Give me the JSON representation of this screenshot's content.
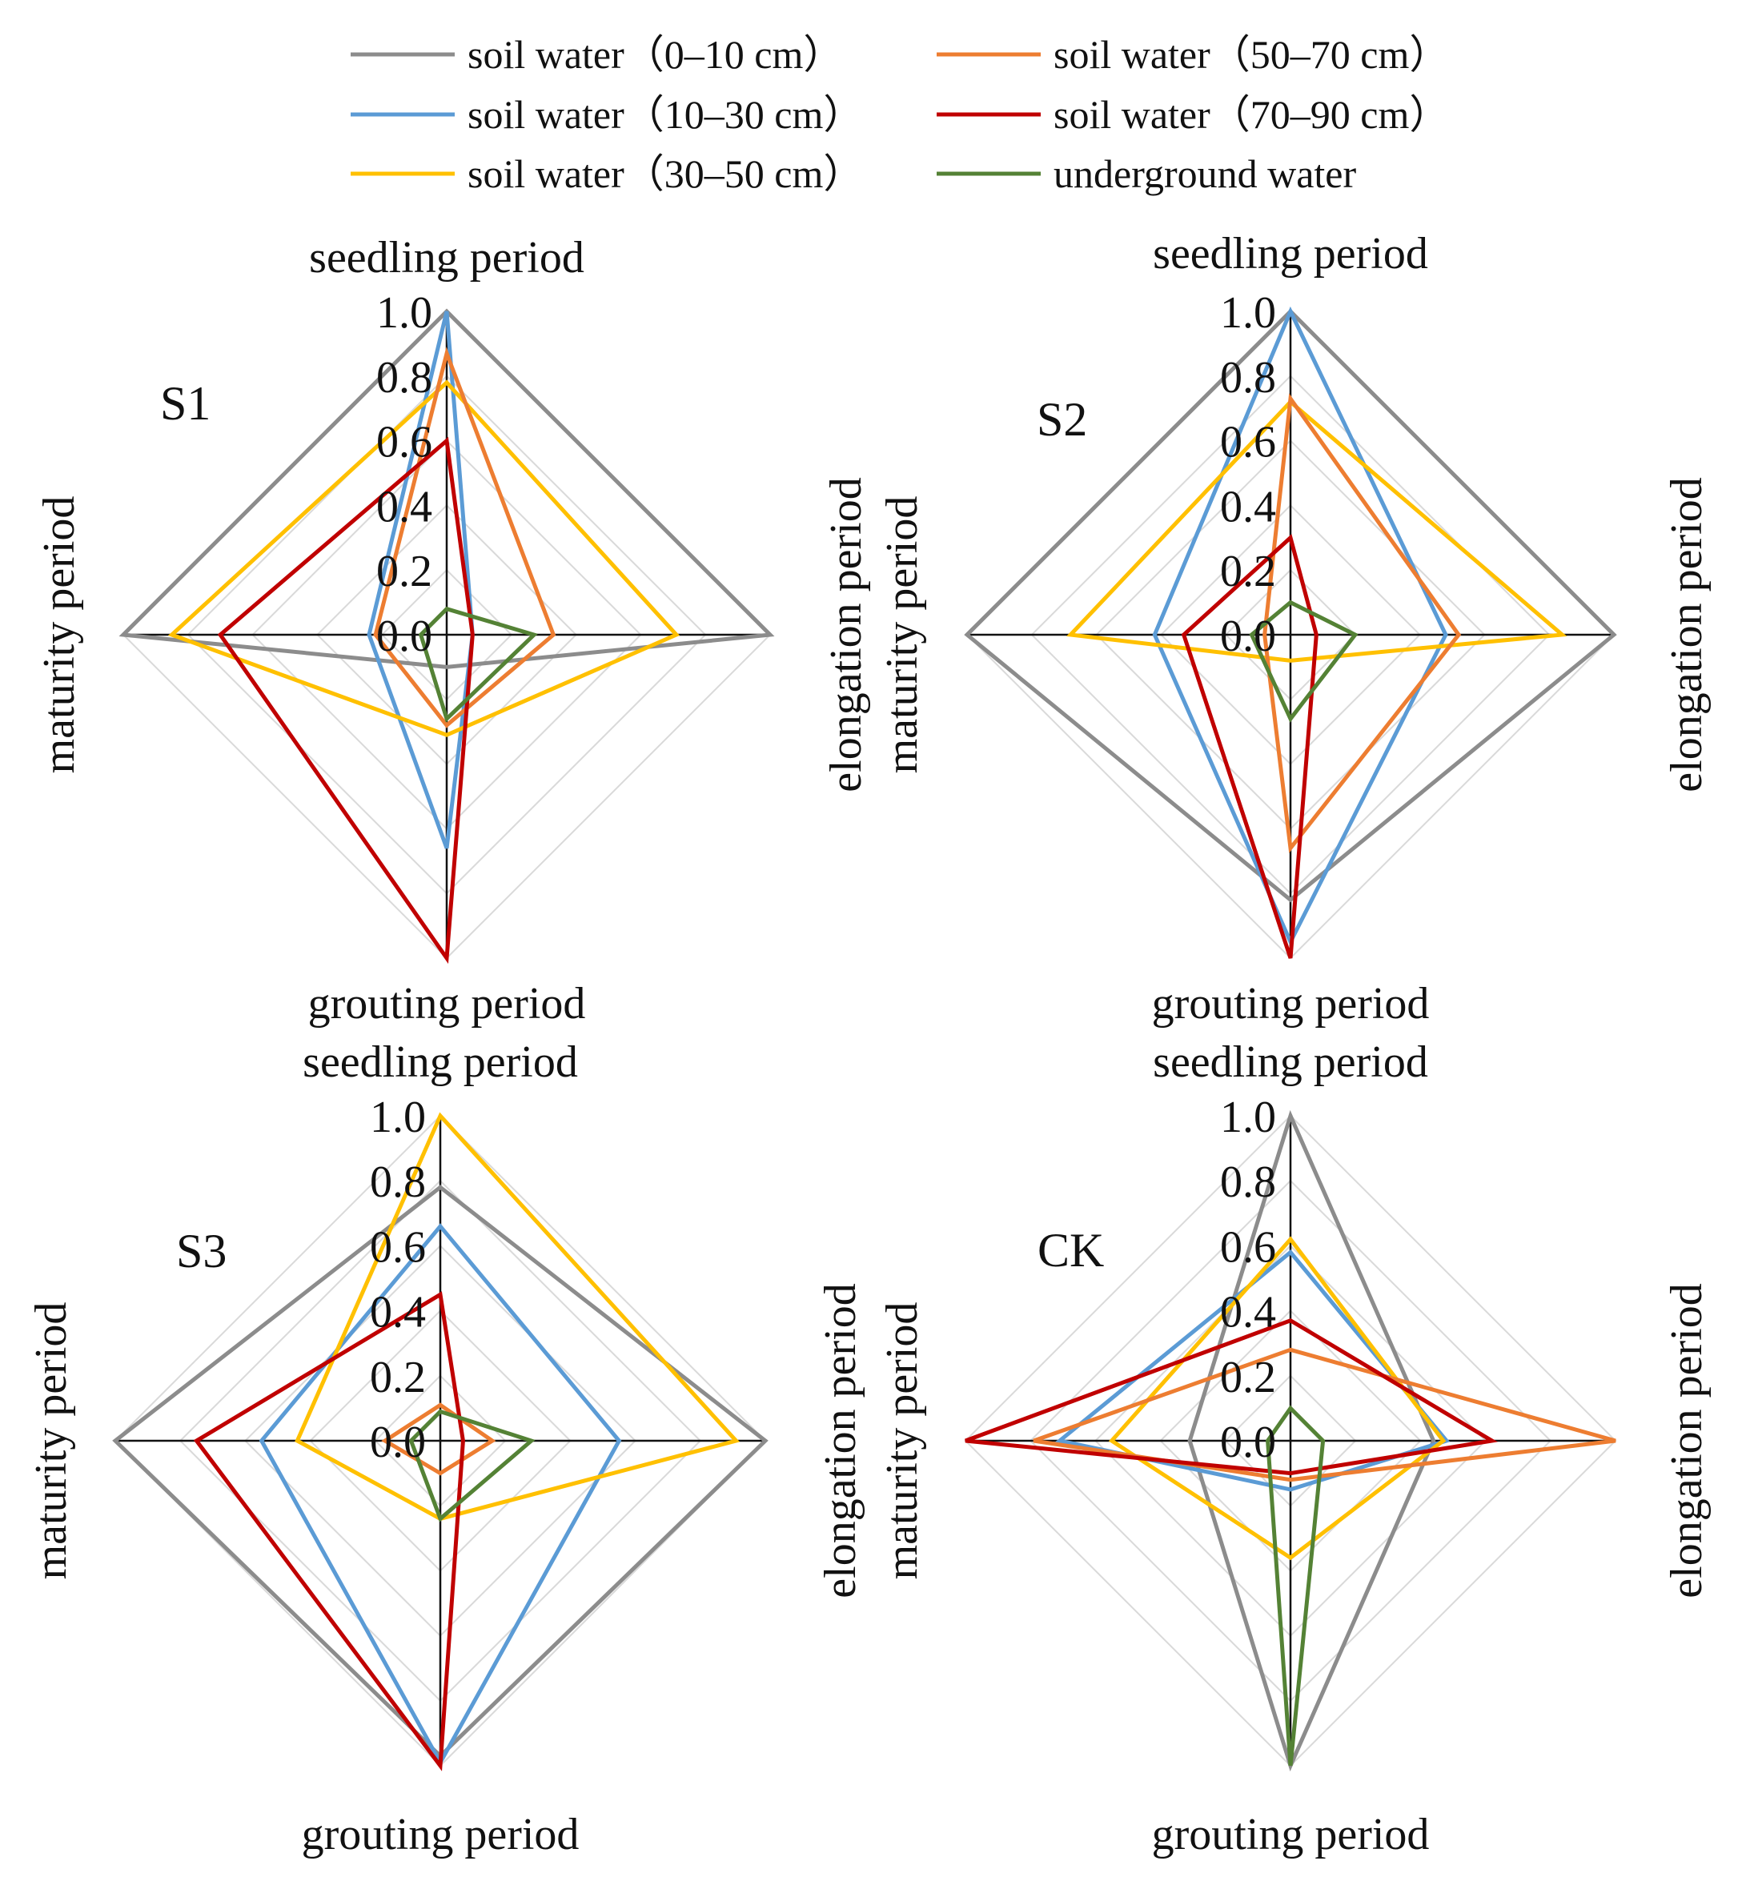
{
  "legend": {
    "items": [
      {
        "key": "sw0_10",
        "label": "soil water（0–10 cm）",
        "color": "#8c8c8c"
      },
      {
        "key": "sw10_30",
        "label": "soil water（10–30 cm）",
        "color": "#5b9bd5"
      },
      {
        "key": "sw30_50",
        "label": "soil water（30–50 cm）",
        "color": "#ffc000"
      },
      {
        "key": "sw50_70",
        "label": "soil water（50–70 cm）",
        "color": "#ed7d31"
      },
      {
        "key": "sw70_90",
        "label": "soil water（70–90 cm）",
        "color": "#c00000"
      },
      {
        "key": "ugw",
        "label": "underground water",
        "color": "#548235"
      }
    ]
  },
  "chart_data": [
    {
      "type": "radar",
      "panel": "S1",
      "axes": [
        "seedling period",
        "elongation period",
        "grouting period",
        "maturity period"
      ],
      "ticks": [
        "0.0",
        "0.2",
        "0.4",
        "0.6",
        "0.8",
        "1.0"
      ],
      "range": [
        0,
        1
      ],
      "series": [
        {
          "key": "sw0_10",
          "values": [
            1.0,
            1.0,
            0.1,
            1.0
          ]
        },
        {
          "key": "sw10_30",
          "values": [
            1.0,
            0.08,
            0.66,
            0.24
          ]
        },
        {
          "key": "sw30_50",
          "values": [
            0.78,
            0.71,
            0.31,
            0.85
          ]
        },
        {
          "key": "sw50_70",
          "values": [
            0.87,
            0.33,
            0.28,
            0.22
          ]
        },
        {
          "key": "sw70_90",
          "values": [
            0.6,
            0.08,
            1.0,
            0.7
          ]
        },
        {
          "key": "ugw",
          "values": [
            0.08,
            0.27,
            0.26,
            0.08
          ]
        }
      ]
    },
    {
      "type": "radar",
      "panel": "S2",
      "axes": [
        "seedling period",
        "elongation period",
        "grouting period",
        "maturity period"
      ],
      "ticks": [
        "0.0",
        "0.2",
        "0.4",
        "0.6",
        "0.8",
        "1.0"
      ],
      "range": [
        0,
        1
      ],
      "series": [
        {
          "key": "sw0_10",
          "values": [
            1.0,
            1.0,
            0.82,
            1.0
          ]
        },
        {
          "key": "sw10_30",
          "values": [
            1.0,
            0.48,
            0.95,
            0.42
          ]
        },
        {
          "key": "sw30_50",
          "values": [
            0.72,
            0.84,
            0.08,
            0.68
          ]
        },
        {
          "key": "sw50_70",
          "values": [
            0.73,
            0.52,
            0.66,
            0.08
          ]
        },
        {
          "key": "sw70_90",
          "values": [
            0.3,
            0.08,
            1.0,
            0.33
          ]
        },
        {
          "key": "ugw",
          "values": [
            0.1,
            0.2,
            0.26,
            0.12
          ]
        }
      ]
    },
    {
      "type": "radar",
      "panel": "S3",
      "axes": [
        "seedling period",
        "elongation period",
        "grouting period",
        "maturity period"
      ],
      "ticks": [
        "0.0",
        "0.2",
        "0.4",
        "0.6",
        "0.8",
        "1.0"
      ],
      "range": [
        0,
        1
      ],
      "series": [
        {
          "key": "sw0_10",
          "values": [
            0.78,
            1.0,
            0.97,
            1.0
          ]
        },
        {
          "key": "sw10_30",
          "values": [
            0.66,
            0.55,
            0.99,
            0.55
          ]
        },
        {
          "key": "sw30_50",
          "values": [
            1.0,
            0.91,
            0.24,
            0.44
          ]
        },
        {
          "key": "sw50_70",
          "values": [
            0.11,
            0.16,
            0.1,
            0.17
          ]
        },
        {
          "key": "sw70_90",
          "values": [
            0.45,
            0.07,
            1.0,
            0.75
          ]
        },
        {
          "key": "ugw",
          "values": [
            0.09,
            0.28,
            0.24,
            0.09
          ]
        }
      ]
    },
    {
      "type": "radar",
      "panel": "CK",
      "axes": [
        "seedling period",
        "elongation period",
        "grouting period",
        "maturity period"
      ],
      "ticks": [
        "0.0",
        "0.2",
        "0.4",
        "0.6",
        "0.8",
        "1.0"
      ],
      "range": [
        0,
        1
      ],
      "series": [
        {
          "key": "sw0_10",
          "values": [
            1.0,
            0.44,
            1.0,
            0.31
          ]
        },
        {
          "key": "sw10_30",
          "values": [
            0.58,
            0.48,
            0.15,
            0.71
          ]
        },
        {
          "key": "sw30_50",
          "values": [
            0.62,
            0.47,
            0.36,
            0.55
          ]
        },
        {
          "key": "sw50_70",
          "values": [
            0.28,
            1.0,
            0.12,
            0.79
          ]
        },
        {
          "key": "sw70_90",
          "values": [
            0.37,
            0.62,
            0.1,
            1.0
          ]
        },
        {
          "key": "ugw",
          "values": [
            0.1,
            0.1,
            1.0,
            0.07
          ]
        }
      ]
    }
  ]
}
